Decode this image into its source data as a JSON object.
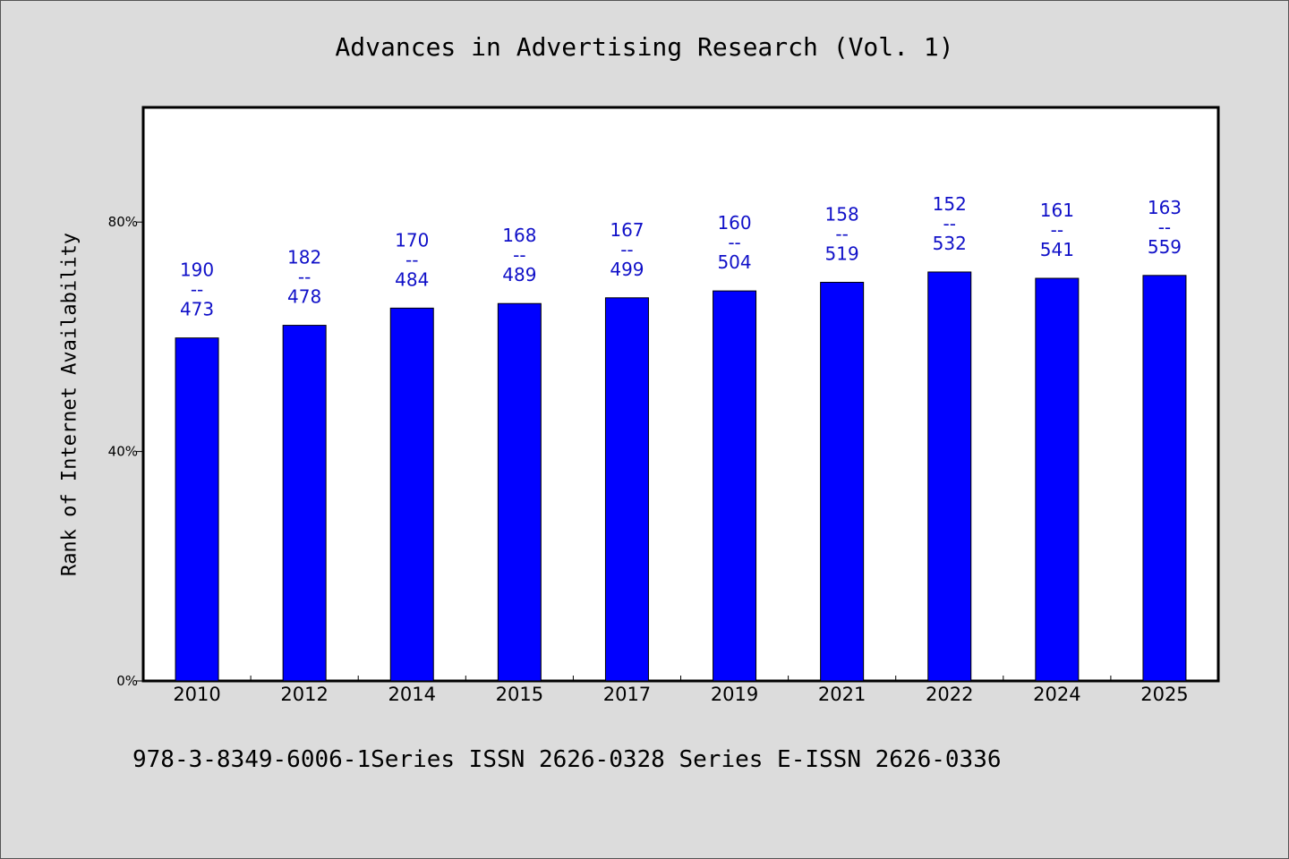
{
  "chart_data": {
    "type": "bar",
    "title": "Advances in Advertising Research (Vol. 1)",
    "ylabel": "Rank of Internet Availability",
    "xlabel": "",
    "categories": [
      "2010",
      "2012",
      "2014",
      "2015",
      "2017",
      "2019",
      "2021",
      "2022",
      "2024",
      "2025"
    ],
    "values": [
      59.8,
      62.0,
      65.0,
      65.8,
      66.8,
      68.0,
      69.5,
      71.3,
      70.2,
      70.7
    ],
    "label_top": [
      "190",
      "182",
      "170",
      "168",
      "167",
      "160",
      "158",
      "152",
      "161",
      "163"
    ],
    "label_sep": "--",
    "label_bottom": [
      "473",
      "478",
      "484",
      "489",
      "499",
      "504",
      "519",
      "532",
      "541",
      "559"
    ],
    "ylim": [
      0,
      100
    ],
    "yticks": [
      0,
      40,
      80
    ],
    "ytick_labels": [
      "0%",
      "40%",
      "80%"
    ],
    "grid": false,
    "bar_color": "#0000ff",
    "label_color": "#1010c8"
  },
  "footer": {
    "text": "978-3-8349-6006-1Series ISSN 2626-0328 Series E-ISSN 2626-0336"
  }
}
